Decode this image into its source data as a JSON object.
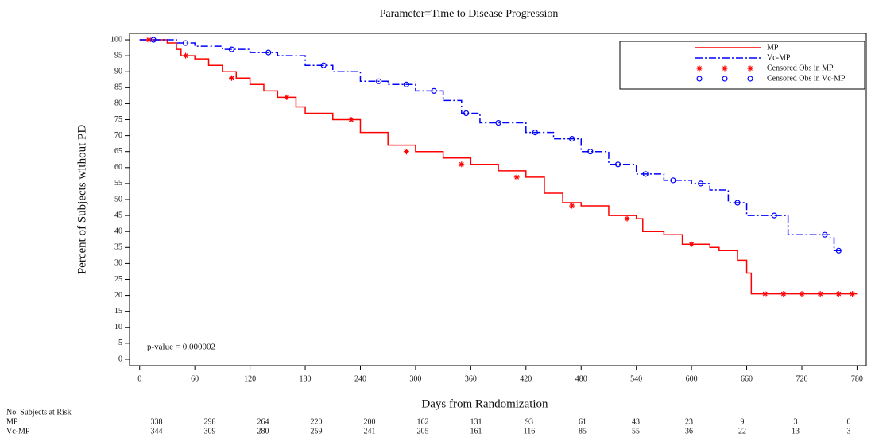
{
  "chart_data": {
    "type": "step",
    "title": "Parameter=Time to Disease Progression",
    "x_label": "Days from Randomization",
    "y_label": "Percent of Subjects without PD",
    "annotation": "p-value = 0.000002",
    "xlim": [
      -11,
      790
    ],
    "ylim": [
      -2,
      102
    ],
    "xticks": [
      0,
      60,
      120,
      180,
      240,
      300,
      360,
      420,
      480,
      540,
      600,
      660,
      720,
      780
    ],
    "yticks": [
      0,
      5,
      10,
      15,
      20,
      25,
      30,
      35,
      40,
      45,
      50,
      55,
      60,
      65,
      70,
      75,
      80,
      85,
      90,
      95,
      100
    ],
    "legend": "upper right",
    "series": [
      {
        "name": "MP",
        "kind": "step",
        "color": "#ff0000",
        "dash": "solid",
        "x": [
          0,
          20,
          30,
          40,
          45,
          60,
          75,
          90,
          105,
          120,
          135,
          150,
          170,
          180,
          210,
          240,
          270,
          300,
          330,
          360,
          390,
          420,
          440,
          460,
          480,
          510,
          540,
          547,
          570,
          590,
          620,
          630,
          650,
          660,
          665,
          780
        ],
        "values": [
          100,
          100,
          99,
          97,
          95,
          94,
          92,
          90,
          88,
          86,
          84,
          82,
          79,
          77,
          75,
          71,
          67,
          65,
          63,
          61,
          59,
          57,
          52,
          49,
          48,
          45,
          44,
          40,
          39,
          36,
          35,
          34,
          31,
          27,
          20.5,
          20.5
        ]
      },
      {
        "name": "Vc-MP",
        "kind": "step",
        "color": "#0000ff",
        "dash": "dashdot",
        "x": [
          0,
          30,
          40,
          60,
          90,
          120,
          150,
          180,
          210,
          240,
          270,
          300,
          330,
          350,
          370,
          420,
          450,
          480,
          510,
          540,
          570,
          600,
          620,
          640,
          660,
          700,
          705,
          750,
          755,
          765
        ],
        "values": [
          100,
          100,
          99,
          98,
          97,
          96,
          95,
          92,
          90,
          87,
          86,
          84,
          81,
          77,
          74,
          71,
          69,
          65,
          61,
          58,
          56,
          55,
          53,
          49,
          45,
          45,
          39,
          38,
          34,
          34
        ]
      },
      {
        "name": "Censored Obs in MP",
        "kind": "censored",
        "marker": "asterisk",
        "color": "#ff0000",
        "x": [
          10,
          50,
          100,
          160,
          230,
          290,
          350,
          410,
          470,
          530,
          600,
          680,
          700,
          720,
          740,
          760,
          775
        ],
        "values": [
          100,
          95,
          88,
          82,
          75,
          65,
          61,
          57,
          48,
          44,
          36,
          20.5,
          20.5,
          20.5,
          20.5,
          20.5,
          20.5
        ]
      },
      {
        "name": "Censored Obs in Vc-MP",
        "kind": "censored",
        "marker": "circle",
        "color": "#0000ff",
        "x": [
          15,
          50,
          100,
          140,
          200,
          260,
          290,
          320,
          355,
          390,
          430,
          470,
          490,
          520,
          550,
          580,
          610,
          650,
          690,
          745,
          760
        ],
        "values": [
          100,
          99,
          97,
          96,
          92,
          87,
          86,
          84,
          77,
          74,
          71,
          69,
          65,
          61,
          58,
          56,
          55,
          49,
          45,
          39,
          34
        ]
      }
    ],
    "risk_table": {
      "title": "No. Subjects at Risk",
      "rows": [
        {
          "name": "MP",
          "values": [
            338,
            298,
            264,
            220,
            200,
            162,
            131,
            93,
            61,
            43,
            23,
            9,
            3,
            0
          ]
        },
        {
          "name": "Vc-MP",
          "values": [
            344,
            309,
            280,
            259,
            241,
            205,
            161,
            116,
            85,
            55,
            36,
            22,
            13,
            3
          ]
        }
      ]
    }
  }
}
